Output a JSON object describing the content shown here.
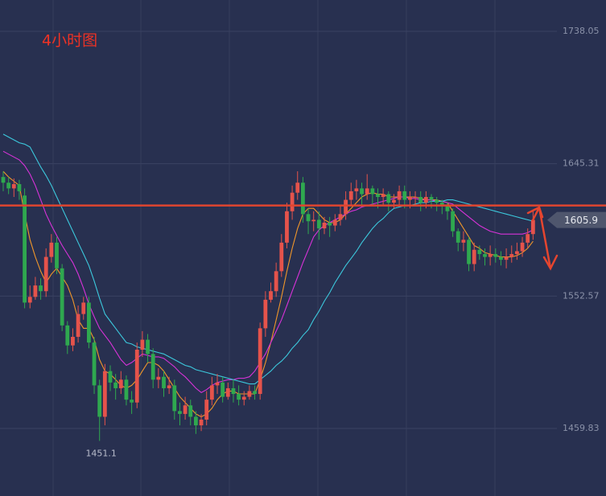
{
  "chart_data": {
    "type": "candlestick",
    "title": "4小时图",
    "ylim": [
      1412.5,
      1760
    ],
    "yticks": [
      1738.05,
      1645.31,
      1552.57,
      1459.83
    ],
    "grid": true,
    "up_color": "#e5534b",
    "down_color": "#2fa84f",
    "open": [
      1636,
      1632,
      1628,
      1631,
      1623,
      1548,
      1552,
      1560,
      1556,
      1580,
      1590,
      1572,
      1532,
      1518,
      1524,
      1540,
      1548,
      1520,
      1490,
      1468,
      1500,
      1492,
      1488,
      1494,
      1480,
      1478,
      1515,
      1522,
      1512,
      1494,
      1496,
      1488,
      1490,
      1472,
      1470,
      1476,
      1468,
      1462,
      1466,
      1480,
      1490,
      1492,
      1482,
      1488,
      1484,
      1480,
      1482,
      1486,
      1484,
      1530,
      1550,
      1556,
      1570,
      1590,
      1612,
      1625,
      1632,
      1610,
      1605,
      1606,
      1600,
      1604,
      1602,
      1606,
      1610,
      1620,
      1626,
      1628,
      1624,
      1628,
      1624,
      1622,
      1624,
      1618,
      1620,
      1626,
      1620,
      1622,
      1622,
      1618,
      1622,
      1620,
      1618,
      1616,
      1612,
      1598,
      1590,
      1592,
      1575,
      1585,
      1582,
      1580,
      1582,
      1580,
      1578,
      1580,
      1582,
      1584,
      1590,
      1596
    ],
    "high": [
      1640,
      1636,
      1635,
      1634,
      1628,
      1560,
      1566,
      1565,
      1586,
      1596,
      1594,
      1575,
      1535,
      1530,
      1546,
      1552,
      1552,
      1524,
      1494,
      1505,
      1504,
      1498,
      1500,
      1497,
      1486,
      1520,
      1528,
      1526,
      1516,
      1502,
      1500,
      1496,
      1494,
      1478,
      1482,
      1480,
      1472,
      1470,
      1486,
      1496,
      1498,
      1496,
      1492,
      1494,
      1490,
      1486,
      1490,
      1490,
      1534,
      1556,
      1562,
      1576,
      1596,
      1618,
      1630,
      1640,
      1636,
      1614,
      1612,
      1612,
      1608,
      1608,
      1610,
      1616,
      1626,
      1632,
      1634,
      1632,
      1638,
      1630,
      1628,
      1628,
      1626,
      1624,
      1630,
      1630,
      1626,
      1626,
      1626,
      1626,
      1624,
      1622,
      1620,
      1618,
      1614,
      1600,
      1598,
      1594,
      1590,
      1588,
      1586,
      1588,
      1586,
      1584,
      1586,
      1588,
      1590,
      1594,
      1600,
      1612
    ],
    "low": [
      1626,
      1624,
      1622,
      1620,
      1544,
      1544,
      1550,
      1550,
      1552,
      1576,
      1568,
      1528,
      1512,
      1514,
      1520,
      1536,
      1516,
      1484,
      1451.1,
      1462,
      1486,
      1480,
      1484,
      1476,
      1470,
      1474,
      1510,
      1506,
      1488,
      1488,
      1482,
      1484,
      1466,
      1462,
      1466,
      1462,
      1456,
      1458,
      1462,
      1476,
      1484,
      1478,
      1480,
      1478,
      1476,
      1476,
      1480,
      1480,
      1480,
      1524,
      1548,
      1552,
      1566,
      1586,
      1606,
      1620,
      1604,
      1596,
      1598,
      1592,
      1596,
      1594,
      1598,
      1602,
      1606,
      1616,
      1620,
      1616,
      1620,
      1616,
      1614,
      1616,
      1612,
      1614,
      1616,
      1614,
      1614,
      1616,
      1612,
      1614,
      1614,
      1612,
      1610,
      1606,
      1594,
      1584,
      1584,
      1570,
      1570,
      1578,
      1574,
      1574,
      1576,
      1574,
      1572,
      1576,
      1578,
      1580,
      1586,
      1592
    ],
    "close": [
      1632,
      1628,
      1631,
      1626,
      1548,
      1552,
      1560,
      1556,
      1580,
      1590,
      1572,
      1532,
      1518,
      1524,
      1540,
      1548,
      1520,
      1490,
      1468,
      1500,
      1492,
      1488,
      1494,
      1480,
      1478,
      1515,
      1522,
      1512,
      1494,
      1496,
      1488,
      1490,
      1472,
      1470,
      1476,
      1468,
      1462,
      1466,
      1480,
      1490,
      1492,
      1482,
      1488,
      1484,
      1480,
      1482,
      1486,
      1484,
      1530,
      1550,
      1556,
      1570,
      1590,
      1612,
      1625,
      1632,
      1610,
      1605,
      1606,
      1600,
      1604,
      1602,
      1606,
      1610,
      1620,
      1626,
      1628,
      1624,
      1628,
      1624,
      1622,
      1624,
      1618,
      1620,
      1626,
      1620,
      1622,
      1622,
      1618,
      1622,
      1620,
      1618,
      1616,
      1612,
      1598,
      1590,
      1592,
      1575,
      1585,
      1582,
      1580,
      1582,
      1580,
      1578,
      1580,
      1582,
      1584,
      1590,
      1596,
      1605.9
    ],
    "series": [
      {
        "color": "#f0962a",
        "values": [
          1640,
          1636,
          1633,
          1630,
          1610,
          1592,
          1580,
          1570,
          1562,
          1568,
          1572,
          1566,
          1560,
          1550,
          1536,
          1530,
          1530,
          1522,
          1508,
          1500,
          1498,
          1494,
          1490,
          1488,
          1490,
          1494,
          1500,
          1506,
          1506,
          1504,
          1500,
          1494,
          1488,
          1482,
          1478,
          1474,
          1470,
          1468,
          1470,
          1474,
          1480,
          1484,
          1486,
          1486,
          1484,
          1484,
          1484,
          1484,
          1494,
          1506,
          1520,
          1536,
          1552,
          1570,
          1586,
          1600,
          1610,
          1614,
          1614,
          1610,
          1606,
          1604,
          1604,
          1606,
          1610,
          1614,
          1618,
          1622,
          1624,
          1625,
          1624,
          1624,
          1622,
          1622,
          1622,
          1622,
          1622,
          1622,
          1621,
          1620,
          1620,
          1620,
          1619,
          1618,
          1612,
          1606,
          1600,
          1594,
          1588,
          1586,
          1583,
          1582,
          1581,
          1580,
          1580,
          1580,
          1581,
          1583,
          1586,
          1591
        ]
      },
      {
        "color": "#d832d8",
        "values": [
          1654,
          1652,
          1650,
          1648,
          1644,
          1638,
          1630,
          1620,
          1610,
          1602,
          1595,
          1588,
          1582,
          1576,
          1568,
          1558,
          1547,
          1538,
          1530,
          1525,
          1520,
          1514,
          1508,
          1504,
          1506,
          1509,
          1512,
          1511,
          1510,
          1510,
          1509,
          1506,
          1503,
          1499,
          1496,
          1492,
          1488,
          1485,
          1487,
          1490,
          1492,
          1493,
          1494,
          1494,
          1495,
          1495,
          1496,
          1500,
          1506,
          1512,
          1520,
          1528,
          1536,
          1546,
          1556,
          1566,
          1576,
          1585,
          1594,
          1599,
          1602,
          1604,
          1606,
          1608,
          1610,
          1612,
          1613,
          1615,
          1616,
          1617,
          1618,
          1619,
          1620,
          1621,
          1622,
          1622,
          1621,
          1621,
          1620,
          1620,
          1620,
          1619,
          1619,
          1618,
          1617,
          1614,
          1611,
          1608,
          1605,
          1602,
          1600,
          1598,
          1597,
          1596,
          1596,
          1596,
          1596,
          1596,
          1597,
          1599
        ]
      },
      {
        "color": "#3cc8dc",
        "values": [
          1666,
          1664,
          1662,
          1660,
          1659,
          1657,
          1650,
          1643,
          1637,
          1630,
          1622,
          1614,
          1606,
          1598,
          1590,
          1582,
          1574,
          1563,
          1551,
          1540,
          1535,
          1530,
          1525,
          1520,
          1519,
          1517,
          1516,
          1515,
          1514,
          1513,
          1512,
          1510,
          1508,
          1506,
          1504,
          1503,
          1501,
          1500,
          1499,
          1498,
          1497,
          1496,
          1495,
          1494,
          1493,
          1492,
          1491,
          1491,
          1494,
          1497,
          1500,
          1504,
          1507,
          1511,
          1516,
          1520,
          1525,
          1529,
          1536,
          1542,
          1549,
          1555,
          1562,
          1568,
          1574,
          1579,
          1584,
          1590,
          1595,
          1600,
          1604,
          1607,
          1611,
          1614,
          1615,
          1616,
          1616,
          1617,
          1618,
          1618,
          1619,
          1619,
          1619,
          1620,
          1620,
          1619,
          1618,
          1617,
          1616,
          1615,
          1614,
          1613,
          1612,
          1611,
          1610,
          1609,
          1608,
          1607,
          1606,
          1605
        ]
      }
    ],
    "hline": {
      "value": 1616,
      "color": "#e0452f"
    }
  }
}
